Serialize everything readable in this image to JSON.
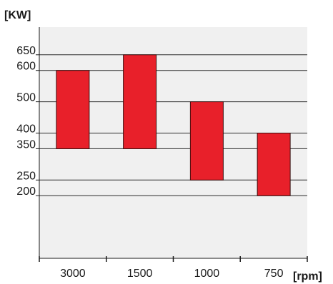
{
  "chart_data": {
    "type": "bar",
    "subtype": "floating-range",
    "ylabel": "[KW]",
    "xlabel": "[rpm]",
    "categories": [
      "3000",
      "1500",
      "1000",
      "750"
    ],
    "ranges": [
      {
        "category": "3000",
        "low": 350,
        "high": 600
      },
      {
        "category": "1500",
        "low": 350,
        "high": 650
      },
      {
        "category": "1000",
        "low": 250,
        "high": 500
      },
      {
        "category": "750",
        "low": 200,
        "high": 400
      }
    ],
    "yticks": [
      650,
      600,
      500,
      400,
      350,
      250,
      200
    ],
    "ylim": [
      0,
      700
    ],
    "grid": true,
    "colors": {
      "bar": "#e8202a",
      "bar_stroke": "#3a0c0c",
      "plot_background": "#f0f0f0",
      "grid": "#2a2a2a",
      "axis": "#1a1a1a"
    }
  }
}
